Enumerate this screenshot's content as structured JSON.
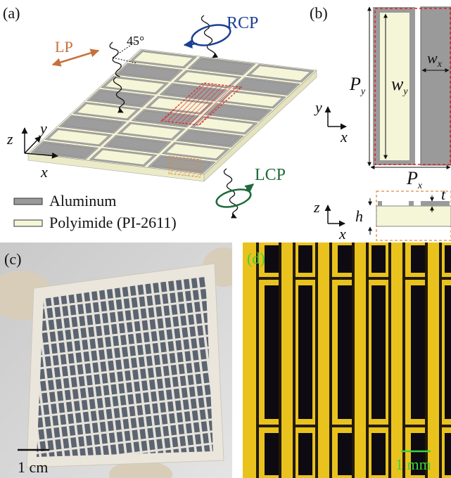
{
  "panels": {
    "a": {
      "label": "(a)",
      "lp": "LP",
      "angle": "45°",
      "rcp": "RCP",
      "lcp": "LCP",
      "axes": {
        "z": "z",
        "y": "y",
        "x": "x"
      },
      "legend": [
        "Aluminum",
        "Polyimide (PI-2611)"
      ]
    },
    "b": {
      "label": "(b)",
      "py": {
        "main": "P",
        "sub": "y"
      },
      "wy": {
        "main": "w",
        "sub": "y"
      },
      "wx": {
        "main": "w",
        "sub": "x"
      },
      "px": {
        "main": "P",
        "sub": "x"
      },
      "axes_top": {
        "y": "y",
        "x": "x"
      },
      "axes_bottom": {
        "z": "z",
        "x": "x"
      },
      "h": "h",
      "t": "t"
    },
    "c": {
      "label": "(c)",
      "scale": "1 cm"
    },
    "d": {
      "label": "(d)",
      "scale": "1 mm"
    }
  }
}
